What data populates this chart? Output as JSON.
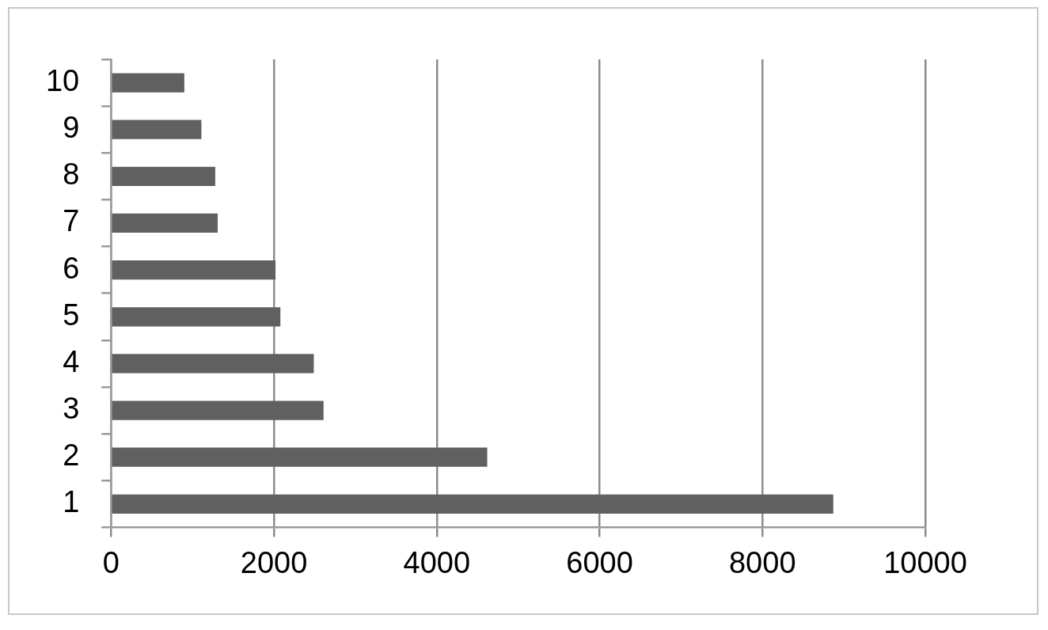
{
  "chart_data": {
    "type": "bar",
    "orientation": "horizontal",
    "categories": [
      "10",
      "9",
      "8",
      "7",
      "6",
      "5",
      "4",
      "3",
      "2",
      "1"
    ],
    "values": [
      900,
      1110,
      1280,
      1310,
      2020,
      2080,
      2490,
      2610,
      4620,
      8870
    ],
    "color": "#606060",
    "xlim": [
      0,
      10000
    ],
    "xticks": [
      0,
      2000,
      4000,
      6000,
      8000,
      10000
    ],
    "grid": "x"
  }
}
